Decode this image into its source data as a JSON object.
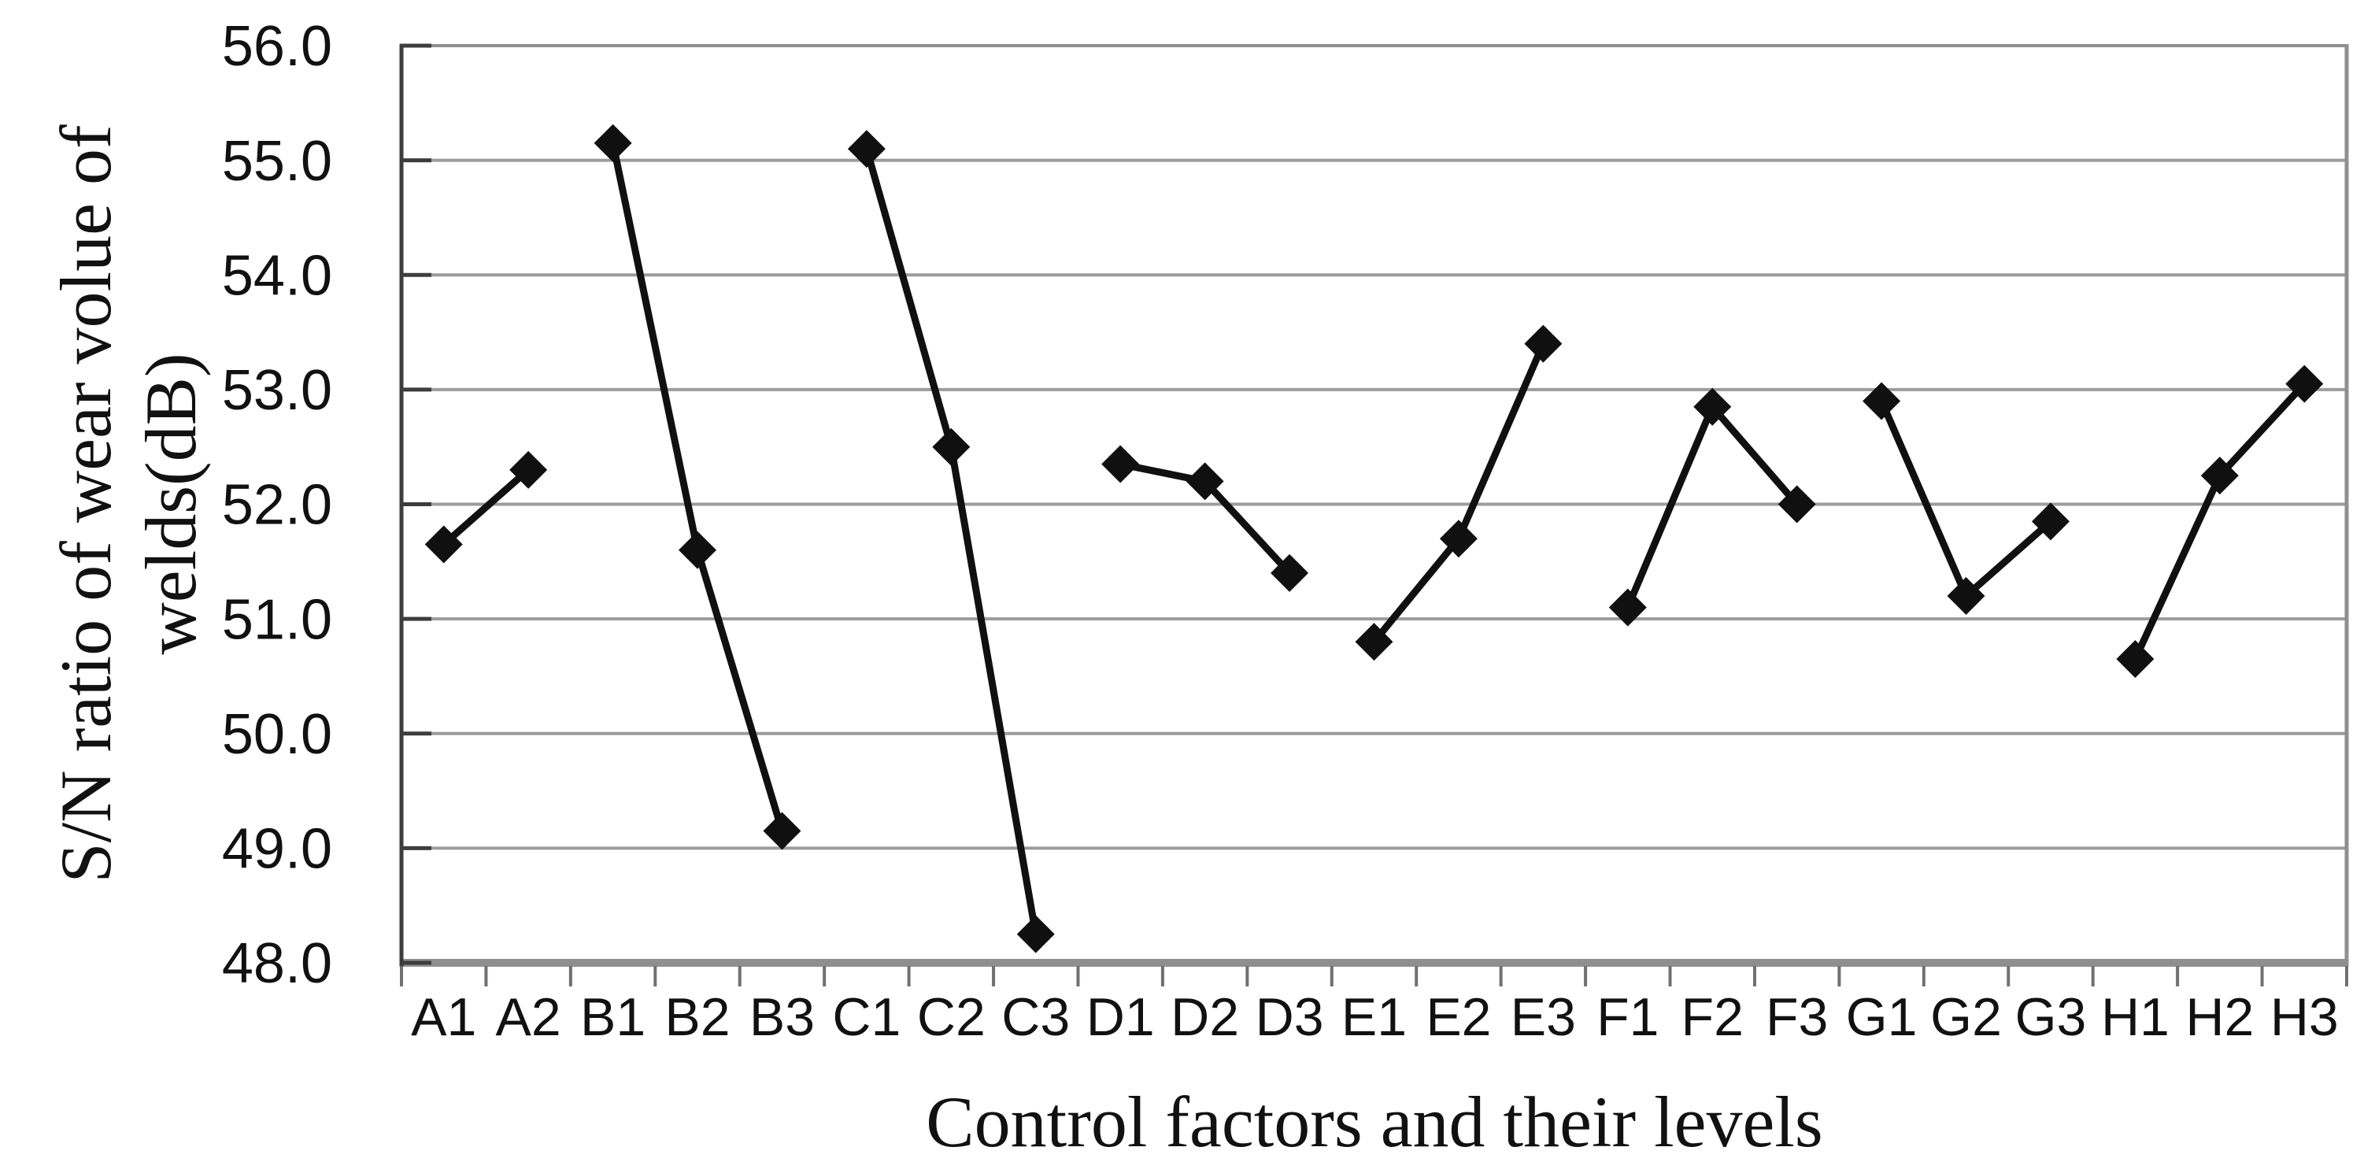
{
  "figure": {
    "background": "#ffffff",
    "series_color": "#101010",
    "gridline_color": "#9c9c9c",
    "left_axis_color": "#3d3d3d",
    "border_color": "#8f8f8f",
    "bottom_tick_color": "#707070",
    "label_color": "#111111"
  },
  "chart_data": {
    "type": "line",
    "title": "",
    "xlabel": "Control factors and their levels",
    "ylabel_line1": "S/N ratio of wear volue of",
    "ylabel_line2": "welds(dB)",
    "ylim": [
      48.0,
      56.0
    ],
    "ytick_step": 1.0,
    "ytick_labels": [
      "56.0",
      "55.0",
      "54.0",
      "53.0",
      "52.0",
      "51.0",
      "50.0",
      "49.0",
      "48.0"
    ],
    "categories": [
      "A1",
      "A2",
      "B1",
      "B2",
      "B3",
      "C1",
      "C2",
      "C3",
      "D1",
      "D2",
      "D3",
      "E1",
      "E2",
      "E3",
      "F1",
      "F2",
      "F3",
      "G1",
      "G2",
      "G3",
      "H1",
      "H2",
      "H3"
    ],
    "grid": true,
    "legend_position": "none",
    "marker": "diamond",
    "series": [
      {
        "name": "A",
        "categories": [
          "A1",
          "A2"
        ],
        "values": [
          51.65,
          52.3
        ]
      },
      {
        "name": "B",
        "categories": [
          "B1",
          "B2",
          "B3"
        ],
        "values": [
          55.15,
          51.6,
          49.15
        ]
      },
      {
        "name": "C",
        "categories": [
          "C1",
          "C2",
          "C3"
        ],
        "values": [
          55.1,
          52.5,
          48.25
        ]
      },
      {
        "name": "D",
        "categories": [
          "D1",
          "D2",
          "D3"
        ],
        "values": [
          52.35,
          52.2,
          51.4
        ]
      },
      {
        "name": "E",
        "categories": [
          "E1",
          "E2",
          "E3"
        ],
        "values": [
          50.8,
          51.7,
          53.4
        ]
      },
      {
        "name": "F",
        "categories": [
          "F1",
          "F2",
          "F3"
        ],
        "values": [
          51.1,
          52.85,
          52.0
        ]
      },
      {
        "name": "G",
        "categories": [
          "G1",
          "G2",
          "G3"
        ],
        "values": [
          52.9,
          51.2,
          51.85
        ]
      },
      {
        "name": "H",
        "categories": [
          "H1",
          "H2",
          "H3"
        ],
        "values": [
          50.65,
          52.25,
          53.05
        ]
      }
    ]
  }
}
